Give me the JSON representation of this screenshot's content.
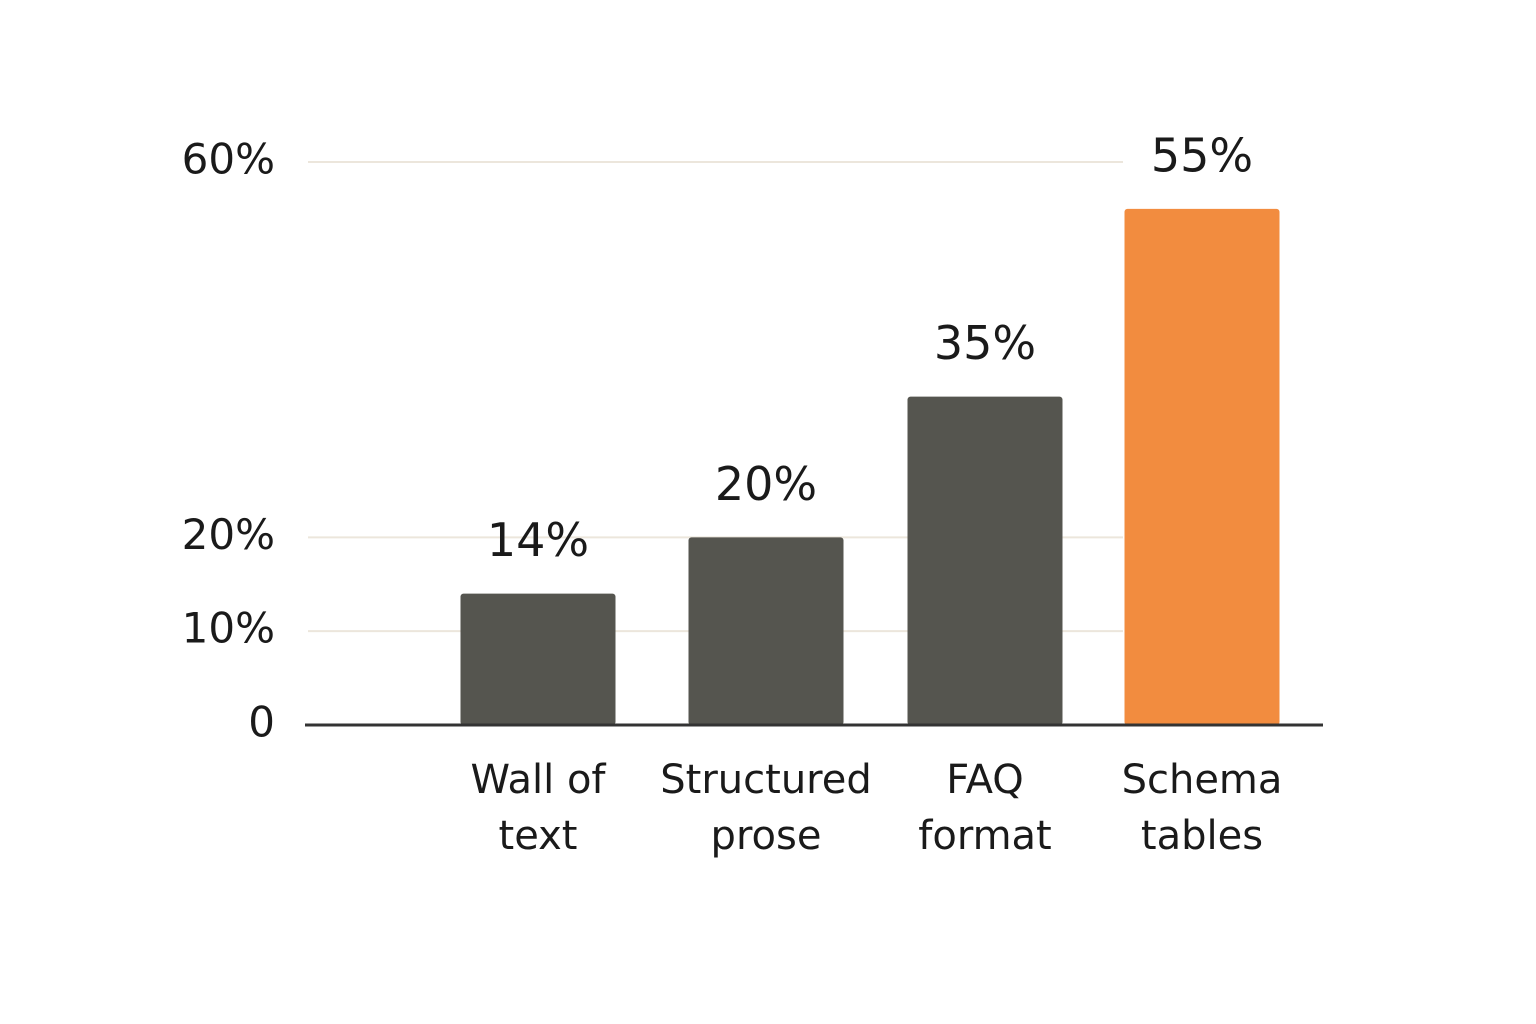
{
  "chart_data": {
    "type": "bar",
    "categories": [
      "Wall of\ntext",
      "Structured\nprose",
      "FAQ\nformat",
      "Schema\ntables"
    ],
    "values": [
      14,
      20,
      35,
      55
    ],
    "value_labels": [
      "14%",
      "20%",
      "35%",
      "55%"
    ],
    "colors": [
      "#55554f",
      "#55554f",
      "#55554f",
      "#f28c3f"
    ],
    "ylim": [
      0,
      60
    ],
    "yticks": [
      0,
      {
        "value": 10,
        "label": "10%"
      },
      {
        "value": 20,
        "label": "20%"
      },
      {
        "value": 60,
        "label": "60%"
      }
    ],
    "grid": true
  }
}
